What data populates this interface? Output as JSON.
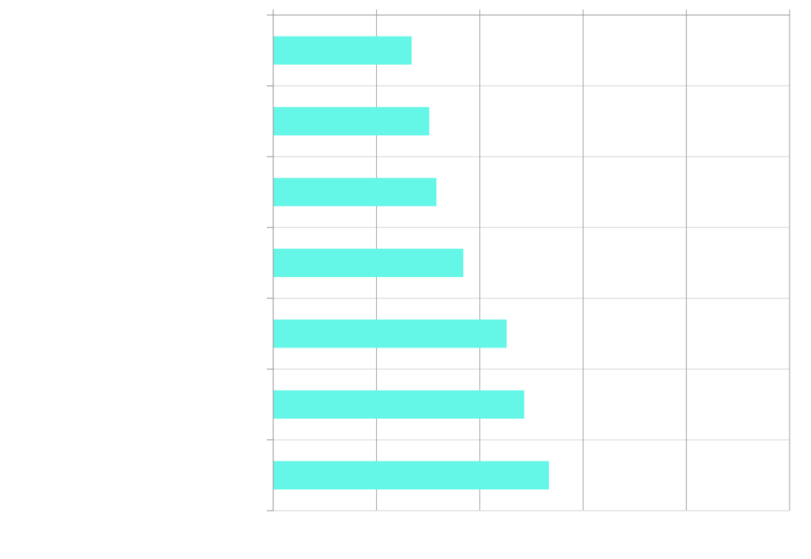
{
  "chart_data": {
    "type": "bar",
    "orientation": "horizontal",
    "categories": [
      "",
      "",
      "",
      "",
      "",
      "",
      ""
    ],
    "values": [
      1.34,
      1.51,
      1.58,
      1.84,
      2.26,
      2.43,
      2.67
    ],
    "xlim": [
      0,
      5
    ],
    "xticks": [
      0,
      1,
      2,
      3,
      4,
      5
    ],
    "title": "",
    "xlabel": "",
    "ylabel": "",
    "grid": true,
    "colors": {
      "bar": "#64f6e6",
      "grid_vertical": "#a0a0a0",
      "grid_horizontal": "#dcdcdc",
      "axis": "#909090"
    }
  }
}
